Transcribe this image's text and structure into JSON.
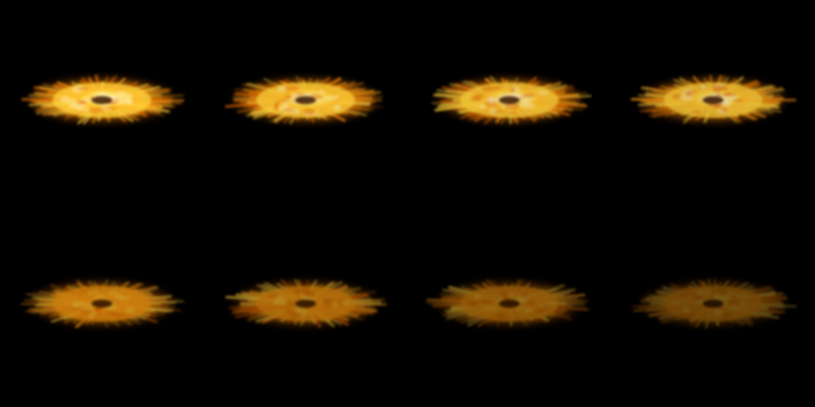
{
  "sprite_sheet": {
    "background_color": "#000000",
    "columns": 4,
    "rows": 2,
    "frames": [
      {
        "intensity": 1.0,
        "hot_core": true
      },
      {
        "intensity": 0.97,
        "hot_core": true
      },
      {
        "intensity": 0.94,
        "hot_core": true
      },
      {
        "intensity": 0.9,
        "hot_core": true
      },
      {
        "intensity": 0.8,
        "hot_core": false
      },
      {
        "intensity": 0.7,
        "hot_core": false
      },
      {
        "intensity": 0.58,
        "hot_core": false
      },
      {
        "intensity": 0.45,
        "hot_core": false
      }
    ],
    "colors": {
      "core_white": "#fff6c8",
      "bright_yellow": "#ffd23a",
      "orange": "#ff9a10",
      "deep_orange": "#e06a00",
      "ember": "#7a2a00",
      "hole": "#3a1400"
    }
  }
}
